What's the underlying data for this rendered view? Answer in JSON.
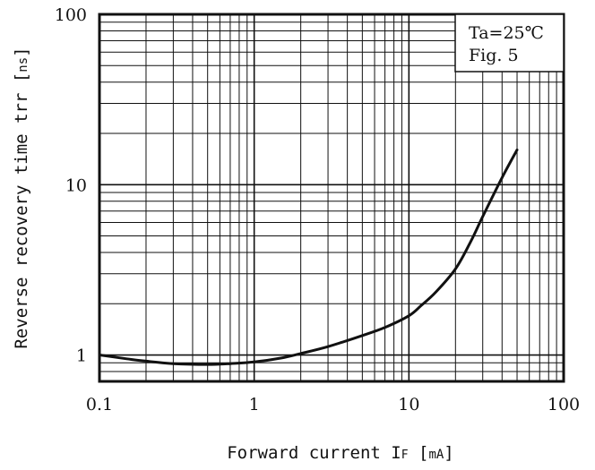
{
  "chart_data": {
    "type": "line",
    "x_scale": "log",
    "y_scale": "log",
    "xlim": [
      0.1,
      100
    ],
    "ylim": [
      0.7,
      100
    ],
    "grid": true,
    "xlabel_text": "Forward current ",
    "xlabel_symbol": "I",
    "xlabel_subscript": "F",
    "xlabel_unit": "mA",
    "ylabel_text": "Reverse recovery time trr ",
    "ylabel_unit": "ns",
    "x_ticks": [
      {
        "value": 0.1,
        "label": "0.1"
      },
      {
        "value": 1,
        "label": "1"
      },
      {
        "value": 10,
        "label": "10"
      },
      {
        "value": 100,
        "label": "100"
      }
    ],
    "y_ticks": [
      {
        "value": 1,
        "label": "1"
      },
      {
        "value": 10,
        "label": "10"
      },
      {
        "value": 100,
        "label": "100"
      }
    ],
    "annotations": {
      "condition": "Ta=25℃",
      "figure": "Fig. 5"
    },
    "series": [
      {
        "color": "#111111",
        "x": [
          0.1,
          0.15,
          0.2,
          0.3,
          0.5,
          0.7,
          1,
          1.5,
          2,
          3,
          5,
          7,
          10,
          12,
          15,
          20,
          25,
          30,
          40,
          50
        ],
        "y": [
          1.0,
          0.95,
          0.92,
          0.89,
          0.88,
          0.89,
          0.91,
          0.96,
          1.02,
          1.12,
          1.3,
          1.45,
          1.7,
          1.95,
          2.35,
          3.2,
          4.6,
          6.5,
          11.0,
          16.0
        ]
      }
    ]
  }
}
